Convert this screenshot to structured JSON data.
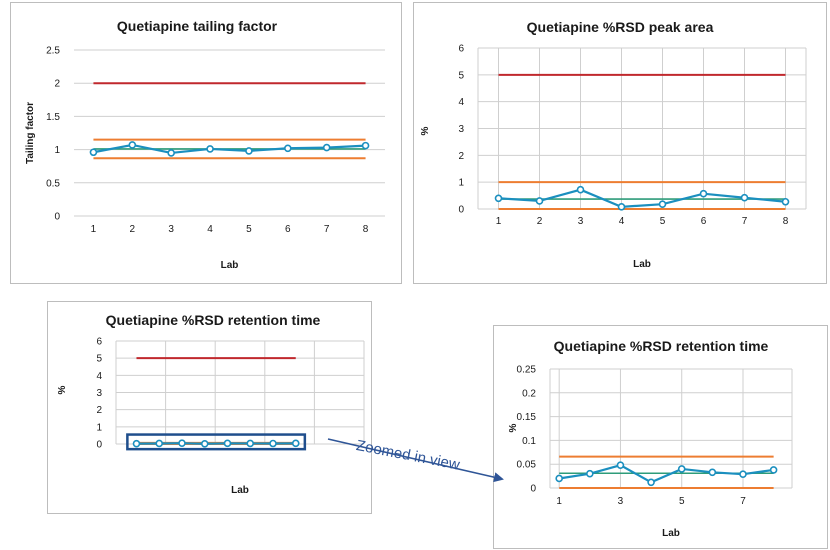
{
  "colors": {
    "series": "#1b8fbf",
    "mean": "#2e9c7a",
    "upper_limit_red": "#c0282d",
    "limit_orange": "#ed7d31",
    "grid": "#cfcfcf",
    "zoom_box": "#1f4e8c",
    "annotation": "#2f5597"
  },
  "annotation": {
    "text": "Zoomed in view"
  },
  "chart_data": [
    {
      "id": "tailing-factor",
      "type": "line",
      "title": "Quetiapine tailing factor",
      "xlabel": "Lab",
      "ylabel": "Tailing factor",
      "x": [
        1,
        2,
        3,
        4,
        5,
        6,
        7,
        8
      ],
      "xticks": [
        "1",
        "2",
        "3",
        "4",
        "5",
        "6",
        "7",
        "8"
      ],
      "ylim": [
        0,
        2.5
      ],
      "yticks": [
        0,
        0.5,
        1,
        1.5,
        2,
        2.5
      ],
      "ytick_labels": [
        "0",
        "0.5",
        "1",
        "1.5",
        "2",
        "2.5"
      ],
      "grid": "horizontal",
      "series": [
        {
          "role": "measured",
          "values": [
            0.96,
            1.07,
            0.95,
            1.01,
            0.98,
            1.02,
            1.03,
            1.06
          ]
        }
      ],
      "reference_lines": [
        {
          "role": "upper-limit",
          "y": 2.0,
          "color": "#c0282d",
          "from": 1,
          "to": 8
        },
        {
          "role": "upper-band",
          "y": 1.15,
          "color": "#ed7d31",
          "from": 1,
          "to": 8
        },
        {
          "role": "mean",
          "y": 1.01,
          "color": "#2e9c7a",
          "from": 1,
          "to": 8
        },
        {
          "role": "lower-band",
          "y": 0.87,
          "color": "#ed7d31",
          "from": 1,
          "to": 8
        }
      ]
    },
    {
      "id": "rsd-peak-area",
      "type": "line",
      "title": "Quetiapine %RSD peak area",
      "xlabel": "Lab",
      "ylabel": "%",
      "x": [
        1,
        2,
        3,
        4,
        5,
        6,
        7,
        8
      ],
      "xticks": [
        "1",
        "2",
        "3",
        "4",
        "5",
        "6",
        "7",
        "8"
      ],
      "ylim": [
        0,
        6
      ],
      "yticks": [
        0,
        1,
        2,
        3,
        4,
        5,
        6
      ],
      "ytick_labels": [
        "0",
        "1",
        "2",
        "3",
        "4",
        "5",
        "6"
      ],
      "grid": "both",
      "series": [
        {
          "role": "measured",
          "values": [
            0.4,
            0.3,
            0.72,
            0.08,
            0.18,
            0.57,
            0.42,
            0.27
          ]
        }
      ],
      "reference_lines": [
        {
          "role": "upper-limit",
          "y": 5.0,
          "color": "#c0282d",
          "from": 1,
          "to": 8
        },
        {
          "role": "upper-band",
          "y": 1.0,
          "color": "#ed7d31",
          "from": 1,
          "to": 8
        },
        {
          "role": "mean",
          "y": 0.37,
          "color": "#2e9c7a",
          "from": 1,
          "to": 8
        },
        {
          "role": "lower-band",
          "y": 0.0,
          "color": "#ed7d31",
          "from": 1,
          "to": 8
        }
      ]
    },
    {
      "id": "rsd-retention-time",
      "type": "line",
      "title": "Quetiapine %RSD retention time",
      "xlabel": "Lab",
      "ylabel": "%",
      "x": [
        1,
        2,
        3,
        4,
        5,
        6,
        7,
        8
      ],
      "xticks": [],
      "ylim": [
        0,
        6
      ],
      "yticks": [
        0,
        1,
        2,
        3,
        4,
        5,
        6
      ],
      "ytick_labels": [
        "0",
        "1",
        "2",
        "3",
        "4",
        "5",
        "6"
      ],
      "grid": "both",
      "series": [
        {
          "role": "measured",
          "values": [
            0.02,
            0.03,
            0.048,
            0.012,
            0.04,
            0.033,
            0.029,
            0.038
          ]
        }
      ],
      "reference_lines": [
        {
          "role": "upper-limit",
          "y": 5.0,
          "color": "#c0282d",
          "from": 1,
          "to": 8
        },
        {
          "role": "upper-band",
          "y": 0.066,
          "color": "#ed7d31",
          "from": 1,
          "to": 8
        },
        {
          "role": "mean",
          "y": 0.031,
          "color": "#2e9c7a",
          "from": 1,
          "to": 8
        },
        {
          "role": "lower-band",
          "y": 0.0,
          "color": "#ed7d31",
          "from": 1,
          "to": 8
        }
      ],
      "highlight_box": {
        "x": [
          0.6,
          8.4
        ],
        "y": [
          -0.3,
          0.55
        ]
      }
    },
    {
      "id": "rsd-retention-time-zoomed",
      "type": "line",
      "title": "Quetiapine %RSD retention time",
      "xlabel": "Lab",
      "ylabel": "%",
      "x": [
        1,
        2,
        3,
        4,
        5,
        6,
        7,
        8
      ],
      "xticks": [
        "1",
        "",
        "3",
        "",
        "5",
        "",
        "7",
        ""
      ],
      "ylim": [
        0,
        0.25
      ],
      "yticks": [
        0,
        0.05,
        0.1,
        0.15,
        0.2,
        0.25
      ],
      "ytick_labels": [
        "0",
        "0.05",
        "0.1",
        "0.15",
        "0.2",
        "0.25"
      ],
      "grid": "both",
      "series": [
        {
          "role": "measured",
          "values": [
            0.02,
            0.03,
            0.048,
            0.012,
            0.04,
            0.033,
            0.029,
            0.038
          ]
        }
      ],
      "reference_lines": [
        {
          "role": "upper-band",
          "y": 0.066,
          "color": "#ed7d31",
          "from": 1,
          "to": 8
        },
        {
          "role": "mean",
          "y": 0.031,
          "color": "#2e9c7a",
          "from": 1,
          "to": 8
        },
        {
          "role": "lower-band",
          "y": 0.0,
          "color": "#ed7d31",
          "from": 1,
          "to": 8
        }
      ]
    }
  ]
}
